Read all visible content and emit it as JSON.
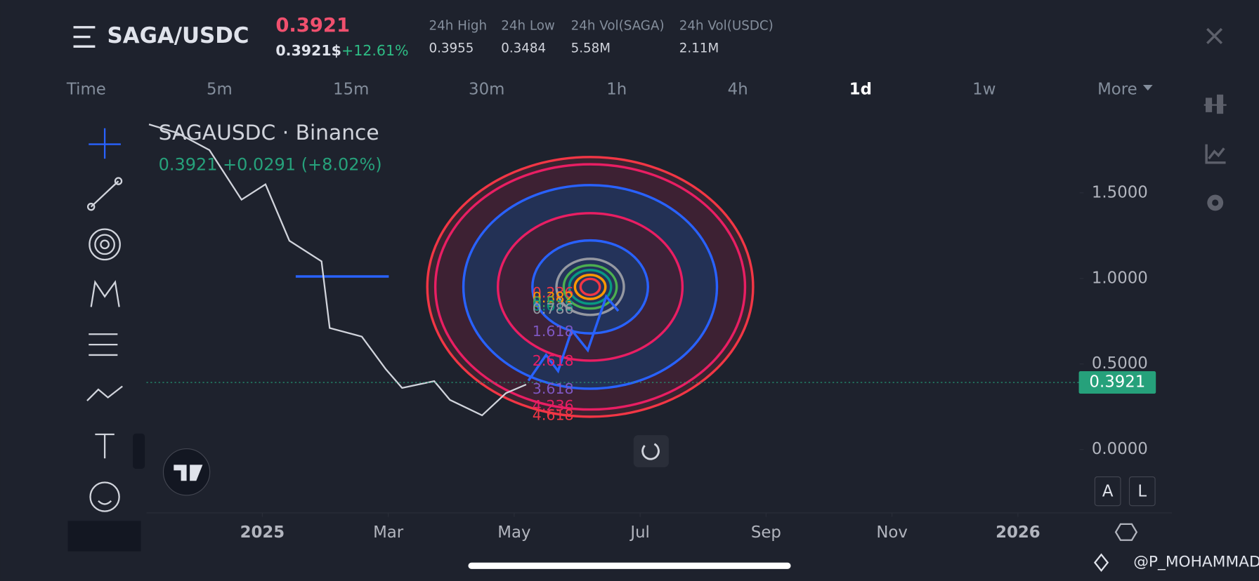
{
  "header": {
    "pair": "SAGA/USDC",
    "price": "0.3921",
    "price_usd": "0.3921$",
    "change": "+12.61%",
    "stats": [
      {
        "label": "24h High",
        "value": "0.3955"
      },
      {
        "label": "24h Low",
        "value": "0.3484"
      },
      {
        "label": "24h Vol(SAGA)",
        "value": "5.58M"
      },
      {
        "label": "24h Vol(USDC)",
        "value": "2.11M"
      }
    ]
  },
  "tabs": [
    "Time",
    "5m",
    "15m",
    "30m",
    "1h",
    "4h",
    "1d",
    "1w",
    "More"
  ],
  "chart_data": {
    "type": "line",
    "title": "SAGAUSDC · Binance",
    "subtitle": "0.3921 +0.0291 (+8.02%)",
    "series": [
      {
        "name": "SAGAUSDC",
        "color": "#d1d4dc",
        "x": [
          -1.8,
          -1.35,
          -0.84,
          -0.33,
          0.05,
          0.43,
          0.94,
          1.07,
          1.58,
          1.96,
          2.22,
          2.73,
          2.98,
          3.49,
          3.87,
          4.19
        ],
        "values": [
          1.9,
          1.85,
          1.75,
          1.46,
          1.55,
          1.22,
          1.1,
          0.71,
          0.66,
          0.47,
          0.36,
          0.4,
          0.29,
          0.2,
          0.33,
          0.38
        ]
      }
    ],
    "last_price": 0.3921,
    "last_color": "#26a17b",
    "xlim": [
      -1.84,
      12.98
    ],
    "ylim": [
      -0.37,
      1.99
    ],
    "xticks": [
      {
        "value": 0,
        "label": "2025"
      },
      {
        "value": 2,
        "label": "Mar"
      },
      {
        "value": 4,
        "label": "May"
      },
      {
        "value": 6,
        "label": "Jul"
      },
      {
        "value": 8,
        "label": "Sep"
      },
      {
        "value": 10,
        "label": "Nov"
      },
      {
        "value": 12,
        "label": "2026"
      }
    ],
    "yticks": [
      {
        "value": 1.5,
        "label": "1.5000"
      },
      {
        "value": 1,
        "label": "1.0000"
      },
      {
        "value": 0.5,
        "label": "0.5000"
      },
      {
        "value": 0,
        "label": "0.0000"
      }
    ],
    "fib_labels": [
      "0.236",
      "0.382",
      "0.5",
      "0.618",
      "0.786",
      "1.618",
      "2.618",
      "3.618",
      "4.236",
      "4.618"
    ]
  },
  "scale_buttons": [
    "A",
    "L"
  ],
  "watermark": "@P_MOHAMMAD"
}
